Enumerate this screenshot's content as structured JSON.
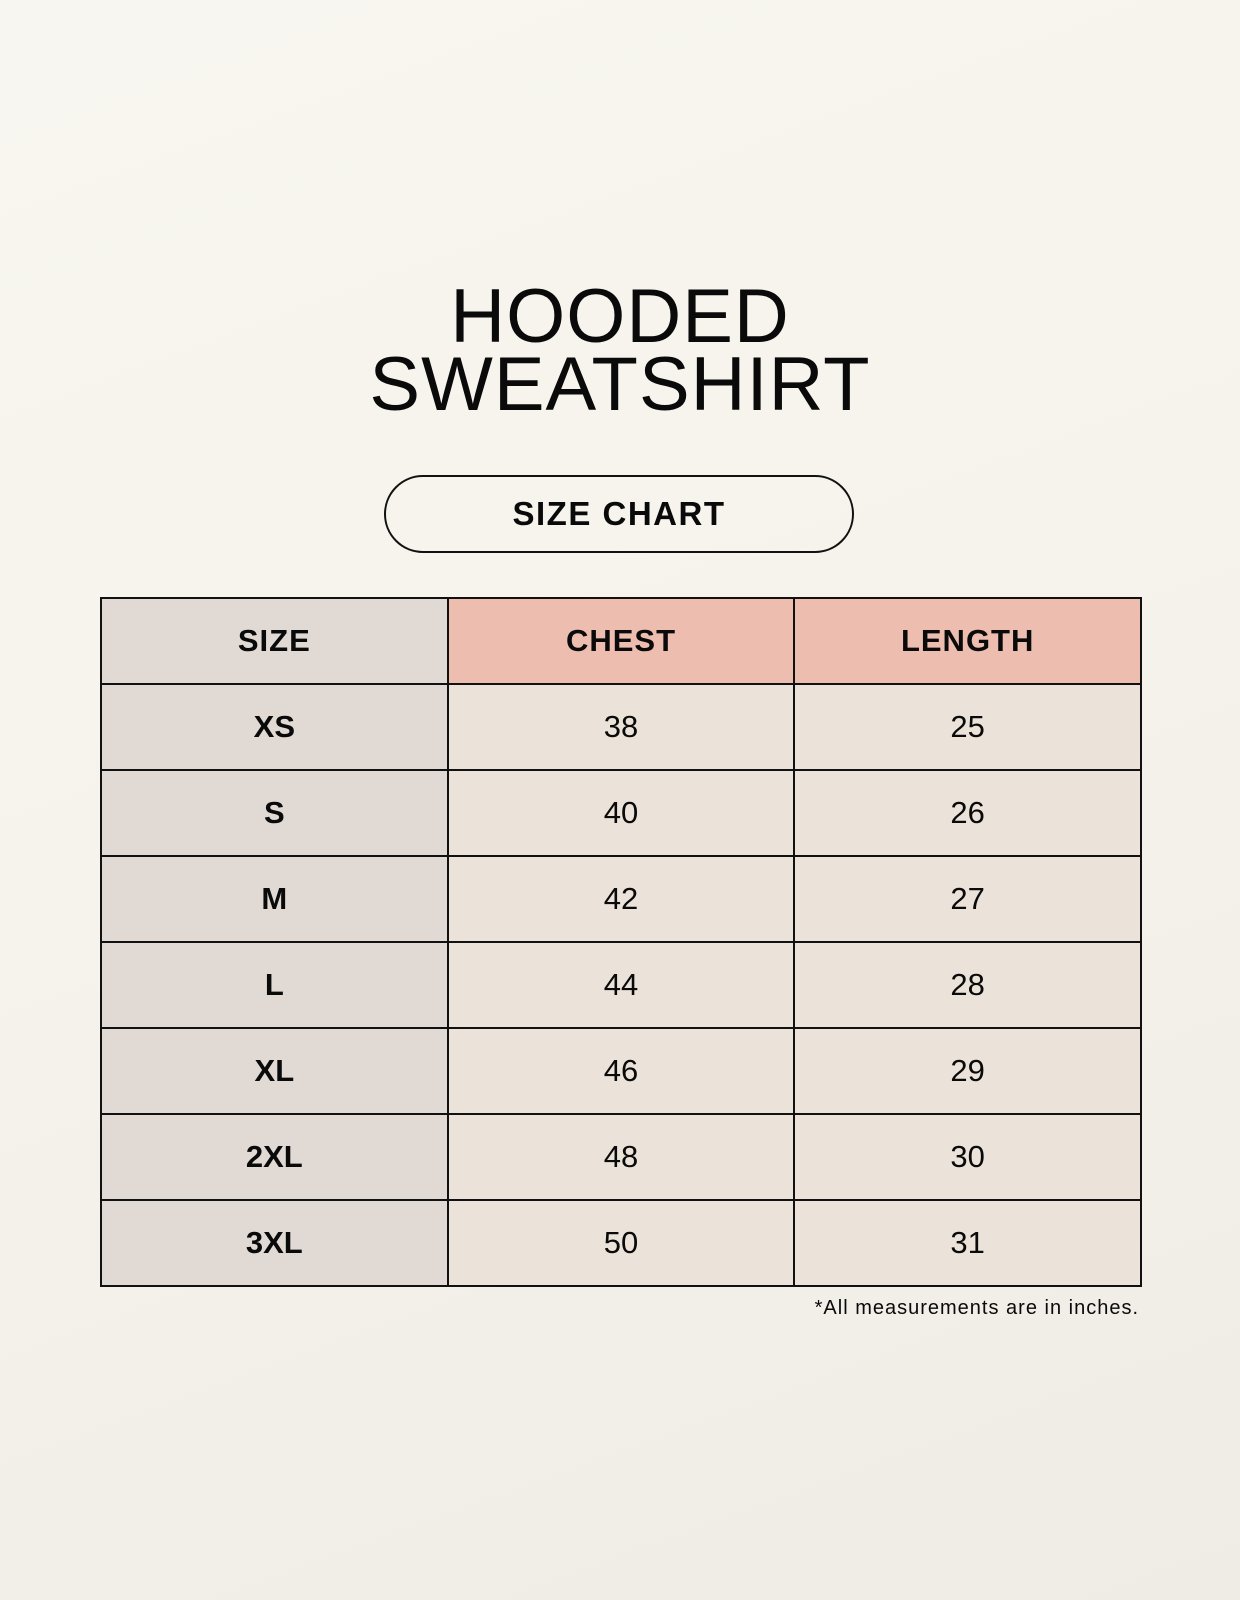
{
  "title_line1": "HOODED",
  "title_line2": "SWEATSHIRT",
  "subtitle": "SIZE CHART",
  "colors": {
    "size_column": "#e0d9d4",
    "header_accent": "#edbdb0",
    "cell": "#ebe3d9"
  },
  "table": {
    "headers": [
      "SIZE",
      "CHEST",
      "LENGTH"
    ],
    "rows": [
      [
        "XS",
        "38",
        "25"
      ],
      [
        "S",
        "40",
        "26"
      ],
      [
        "M",
        "42",
        "27"
      ],
      [
        "L",
        "44",
        "28"
      ],
      [
        "XL",
        "46",
        "29"
      ],
      [
        "2XL",
        "48",
        "30"
      ],
      [
        "3XL",
        "50",
        "31"
      ]
    ]
  },
  "note": "*All measurements are in inches."
}
